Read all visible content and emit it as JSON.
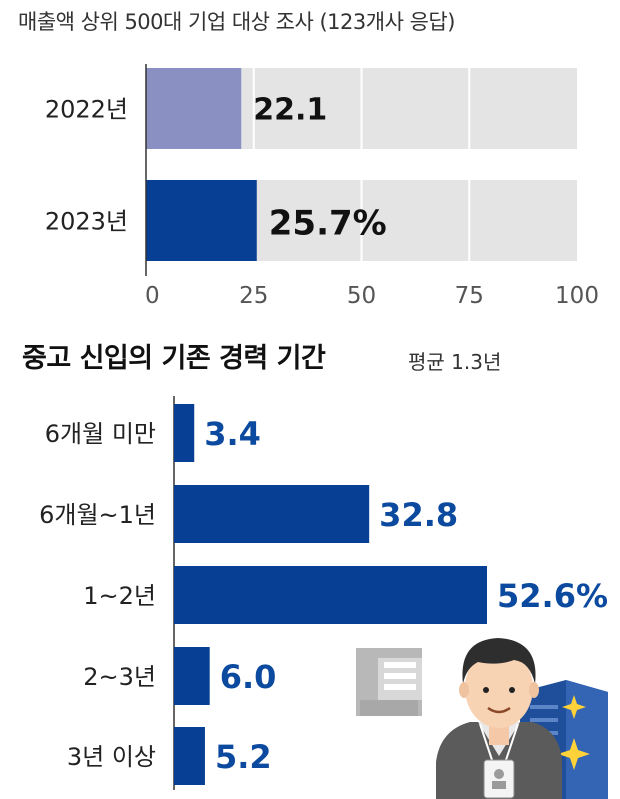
{
  "survey_note": "매출액 상위 500대 기업 대상 조사 (123개사 응답)",
  "chart2_title": "중고 신입의 기존 경력 기간",
  "chart2_note": "평균 1.3년",
  "colors": {
    "light_bar": "#8a91c2",
    "dark_bar": "#073f94",
    "track": "#e4e4e4",
    "value_blue": "#0b4a9e"
  },
  "chart_data": [
    {
      "type": "bar",
      "orientation": "horizontal",
      "categories": [
        "2022년",
        "2023년"
      ],
      "values": [
        22.1,
        25.7
      ],
      "value_labels": [
        "22.1",
        "25.7%"
      ],
      "xlim": [
        0,
        100
      ],
      "xticks": [
        "0",
        "25",
        "50",
        "75",
        "100"
      ],
      "grid": true
    },
    {
      "type": "bar",
      "orientation": "horizontal",
      "title": "중고 신입의 기존 경력 기간",
      "categories": [
        "6개월 미만",
        "6개월~1년",
        "1~2년",
        "2~3년",
        "3년 이상"
      ],
      "values": [
        3.4,
        32.8,
        52.6,
        6.0,
        5.2
      ],
      "value_labels": [
        "3.4",
        "32.8",
        "52.6%",
        "6.0",
        "5.2"
      ],
      "xlim": [
        0,
        60
      ]
    }
  ]
}
